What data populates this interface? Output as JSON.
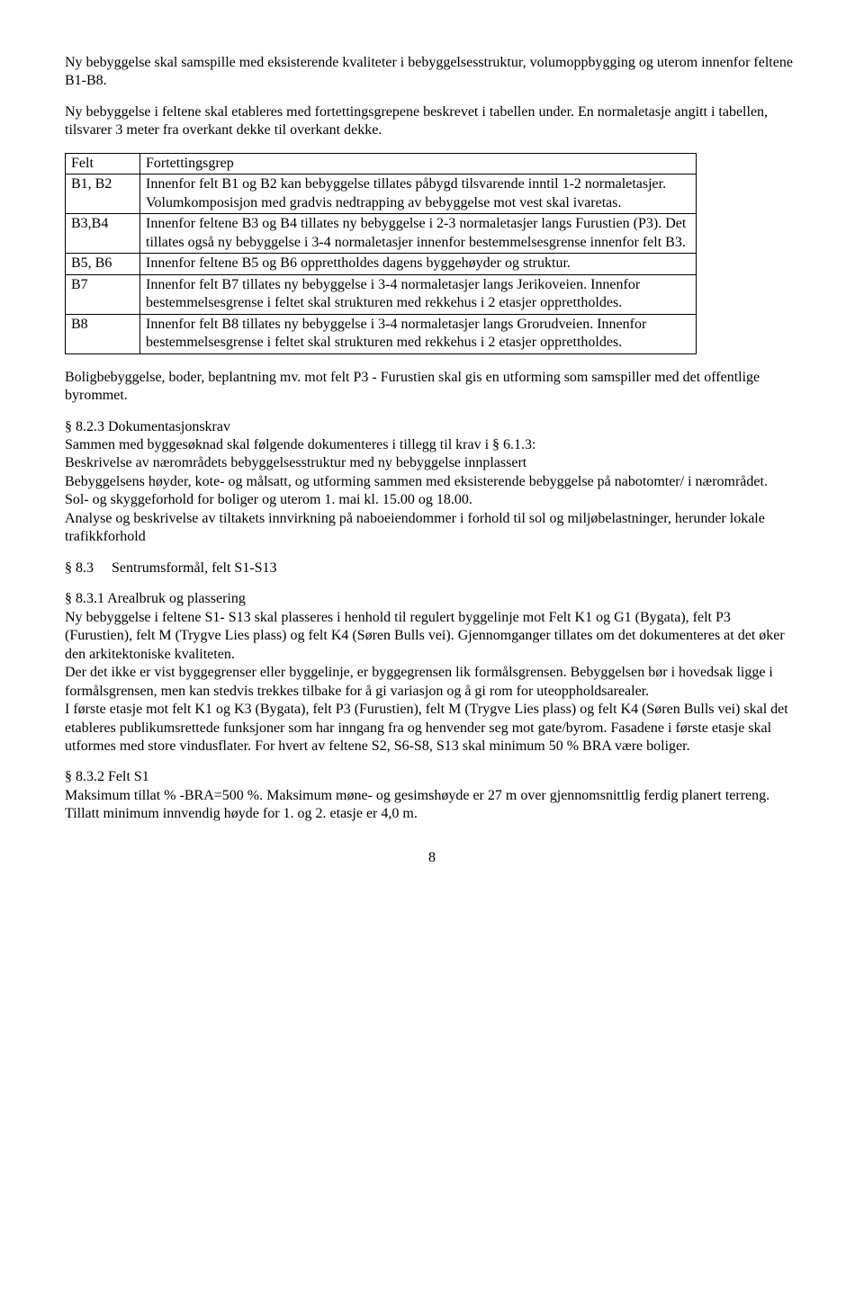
{
  "intro": {
    "p1": "Ny bebyggelse skal samspille med eksisterende kvaliteter i bebyggelsesstruktur, volumoppbygging og uterom innenfor feltene B1-B8.",
    "p2": "Ny bebyggelse i feltene skal etableres med fortettingsgrepene beskrevet i tabellen under. En normaletasje angitt i tabellen, tilsvarer 3 meter fra overkant dekke til overkant dekke."
  },
  "table": {
    "head": {
      "felt": "Felt",
      "grep": "Fortettingsgrep"
    },
    "rows": [
      {
        "felt": "B1, B2",
        "grep": "Innenfor felt B1 og B2 kan bebyggelse tillates påbygd tilsvarende inntil 1-2 normaletasjer. Volumkomposisjon med gradvis nedtrapping av bebyggelse mot vest skal ivaretas."
      },
      {
        "felt": "B3,B4",
        "grep": "Innenfor feltene B3 og B4 tillates ny bebyggelse i 2-3 normaletasjer langs Furustien (P3). Det tillates også ny bebyggelse i 3-4 normaletasjer innenfor bestemmelsesgrense innenfor felt B3."
      },
      {
        "felt": "B5, B6",
        "grep": "Innenfor feltene B5 og B6 opprettholdes dagens byggehøyder og struktur."
      },
      {
        "felt": "B7",
        "grep": "Innenfor felt B7 tillates ny bebyggelse i 3-4 normaletasjer langs Jerikoveien. Innenfor bestemmelsesgrense i feltet skal strukturen med rekkehus i 2 etasjer opprettholdes."
      },
      {
        "felt": "B8",
        "grep": "Innenfor felt B8 tillates ny bebyggelse i 3-4 normaletasjer langs Grorudveien. Innenfor bestemmelsesgrense i feltet skal strukturen med rekkehus i 2 etasjer opprettholdes."
      }
    ]
  },
  "afterTable": "Boligbebyggelse, boder, beplantning mv. mot felt P3 - Furustien skal gis en utforming som samspiller med det offentlige byrommet.",
  "s823": {
    "title": "§ 8.2.3  Dokumentasjonskrav",
    "l1": "Sammen med byggesøknad skal følgende dokumenteres i tillegg til krav i § 6.1.3:",
    "l2": "Beskrivelse av nærområdets bebyggelsesstruktur med ny bebyggelse innplassert",
    "l3": "Bebyggelsens høyder, kote- og målsatt, og utforming sammen med eksisterende bebyggelse på nabotomter/ i nærområdet.",
    "l4": "Sol- og skyggeforhold for boliger og uterom 1. mai kl. 15.00 og 18.00.",
    "l5": "Analyse og beskrivelse av tiltakets innvirkning på naboeiendommer i forhold til sol og miljøbelastninger, herunder lokale trafikkforhold"
  },
  "s83": {
    "title": "§ 8.3     Sentrumsformål, felt S1-S13"
  },
  "s831": {
    "title": "§ 8.3.1  Arealbruk og plassering",
    "p1": "Ny bebyggelse i feltene S1- S13 skal plasseres i henhold til regulert byggelinje mot Felt K1 og G1 (Bygata), felt P3 (Furustien), felt M (Trygve Lies plass) og felt K4 (Søren Bulls vei). Gjennomganger tillates om det dokumenteres at det øker den arkitektoniske kvaliteten.",
    "p2": "Der det ikke er vist byggegrenser eller byggelinje, er byggegrensen lik formålsgrensen. Bebyggelsen bør i hovedsak ligge i formålsgrensen, men kan stedvis trekkes tilbake for å gi variasjon og å gi rom for uteoppholdsarealer.",
    "p3": "I første etasje mot felt K1 og K3 (Bygata), felt P3 (Furustien), felt M (Trygve Lies plass) og felt K4 (Søren Bulls vei) skal det etableres publikumsrettede funksjoner som har inngang fra og henvender seg mot gate/byrom. Fasadene i første etasje skal utformes med store vindusflater. For hvert av feltene S2, S6-S8, S13 skal minimum 50 % BRA være boliger."
  },
  "s832": {
    "title": "§ 8.3.2  Felt S1",
    "p1": " Maksimum tillat % -BRA=500 %. Maksimum møne- og gesimshøyde er 27 m over gjennomsnittlig ferdig planert terreng. Tillatt minimum innvendig høyde for 1. og 2. etasje er 4,0 m."
  },
  "pageNumber": "8"
}
